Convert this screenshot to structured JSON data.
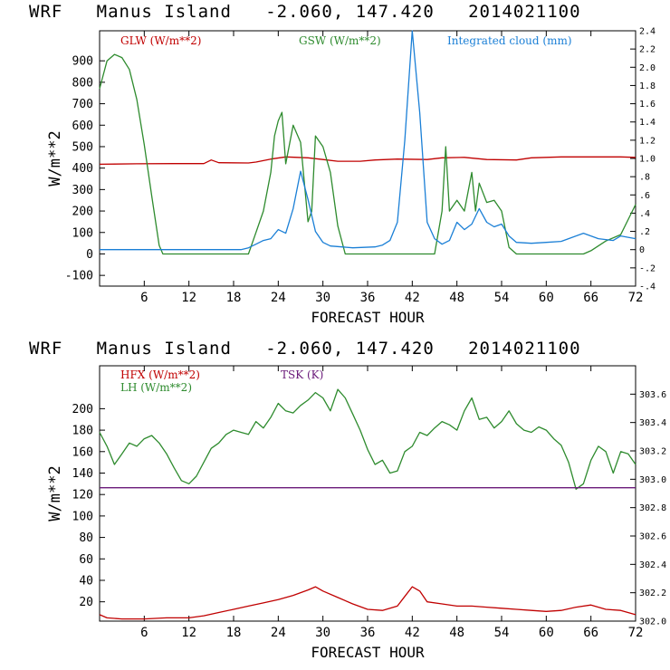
{
  "chart_data": [
    {
      "type": "line",
      "title": "WRF   Manus Island   -2.060, 147.420   2014021100",
      "xlabel": "FORECAST HOUR",
      "ylabel": "W/m**2",
      "xlim": [
        0,
        72
      ],
      "ylim": [
        -150,
        1040
      ],
      "xticks": [
        6,
        12,
        18,
        24,
        30,
        36,
        42,
        48,
        54,
        60,
        66,
        72
      ],
      "yticks": [
        -100,
        0,
        100,
        200,
        300,
        400,
        500,
        600,
        700,
        800,
        900
      ],
      "y2lim": [
        -0.4,
        2.4
      ],
      "y2ticks": [
        -0.4,
        -0.2,
        0,
        0.2,
        0.4,
        0.6,
        0.8,
        1.0,
        1.2,
        1.4,
        1.6,
        1.8,
        2.0,
        2.2,
        2.4
      ],
      "y2tick_labels": [
        "-.4",
        "-.2",
        "0",
        ".2",
        ".4",
        ".6",
        ".8",
        "1.0",
        "1.2",
        "1.4",
        "1.6",
        "1.8",
        "2.0",
        "2.2",
        "2.4"
      ],
      "grid": false,
      "series": [
        {
          "name": "GLW (W/m**2)",
          "color": "#c00000",
          "axis": "left",
          "points": [
            [
              0,
              418
            ],
            [
              5,
              420
            ],
            [
              10,
              421
            ],
            [
              14,
              421
            ],
            [
              15,
              438
            ],
            [
              16,
              425
            ],
            [
              20,
              424
            ],
            [
              21,
              428
            ],
            [
              22,
              435
            ],
            [
              23,
              442
            ],
            [
              25,
              452
            ],
            [
              28,
              448
            ],
            [
              30,
              440
            ],
            [
              32,
              432
            ],
            [
              35,
              432
            ],
            [
              37,
              438
            ],
            [
              40,
              442
            ],
            [
              44,
              440
            ],
            [
              46,
              448
            ],
            [
              49,
              450
            ],
            [
              52,
              440
            ],
            [
              56,
              438
            ],
            [
              58,
              448
            ],
            [
              62,
              452
            ],
            [
              66,
              452
            ],
            [
              70,
              452
            ],
            [
              72,
              450
            ]
          ]
        },
        {
          "name": "GSW (W/m**2)",
          "color": "#2e8b2e",
          "axis": "left",
          "points": [
            [
              0,
              770
            ],
            [
              1,
              900
            ],
            [
              2,
              930
            ],
            [
              3,
              915
            ],
            [
              4,
              860
            ],
            [
              5,
              720
            ],
            [
              6,
              510
            ],
            [
              7,
              270
            ],
            [
              8,
              40
            ],
            [
              8.5,
              0
            ],
            [
              20,
              0
            ],
            [
              21,
              100
            ],
            [
              22,
              200
            ],
            [
              23,
              380
            ],
            [
              23.5,
              550
            ],
            [
              24,
              620
            ],
            [
              24.5,
              660
            ],
            [
              25,
              420
            ],
            [
              26,
              600
            ],
            [
              27,
              520
            ],
            [
              28,
              150
            ],
            [
              28.5,
              200
            ],
            [
              29,
              550
            ],
            [
              30,
              500
            ],
            [
              31,
              380
            ],
            [
              32,
              130
            ],
            [
              33,
              0
            ],
            [
              45,
              0
            ],
            [
              46,
              200
            ],
            [
              46.5,
              500
            ],
            [
              47,
              200
            ],
            [
              48,
              250
            ],
            [
              49,
              200
            ],
            [
              50,
              380
            ],
            [
              50.5,
              200
            ],
            [
              51,
              330
            ],
            [
              52,
              240
            ],
            [
              53,
              250
            ],
            [
              54,
              200
            ],
            [
              55,
              30
            ],
            [
              56,
              0
            ],
            [
              65,
              0
            ],
            [
              66,
              15
            ],
            [
              68,
              60
            ],
            [
              70,
              90
            ],
            [
              71,
              160
            ],
            [
              72,
              230
            ]
          ]
        },
        {
          "name": "Integrated cloud (mm)",
          "color": "#1a7fd6",
          "axis": "right",
          "points": [
            [
              0,
              0
            ],
            [
              15,
              0
            ],
            [
              19,
              0
            ],
            [
              20,
              0.02
            ],
            [
              21,
              0.06
            ],
            [
              22,
              0.1
            ],
            [
              23,
              0.12
            ],
            [
              24,
              0.22
            ],
            [
              25,
              0.18
            ],
            [
              26,
              0.45
            ],
            [
              27,
              0.86
            ],
            [
              28,
              0.55
            ],
            [
              29,
              0.2
            ],
            [
              30,
              0.08
            ],
            [
              31,
              0.04
            ],
            [
              34,
              0.02
            ],
            [
              37,
              0.03
            ],
            [
              38,
              0.05
            ],
            [
              39,
              0.1
            ],
            [
              40,
              0.3
            ],
            [
              41,
              1.2
            ],
            [
              42,
              2.4
            ],
            [
              43,
              1.5
            ],
            [
              44,
              0.3
            ],
            [
              45,
              0.12
            ],
            [
              46,
              0.06
            ],
            [
              47,
              0.1
            ],
            [
              48,
              0.3
            ],
            [
              49,
              0.22
            ],
            [
              50,
              0.28
            ],
            [
              51,
              0.45
            ],
            [
              52,
              0.3
            ],
            [
              53,
              0.25
            ],
            [
              54,
              0.28
            ],
            [
              55,
              0.15
            ],
            [
              56,
              0.08
            ],
            [
              58,
              0.07
            ],
            [
              60,
              0.08
            ],
            [
              62,
              0.09
            ],
            [
              63,
              0.12
            ],
            [
              65,
              0.18
            ],
            [
              67,
              0.12
            ],
            [
              69,
              0.1
            ],
            [
              70,
              0.15
            ],
            [
              72,
              0.12
            ]
          ]
        }
      ]
    },
    {
      "type": "line",
      "title": "WRF   Manus Island   -2.060, 147.420   2014021100",
      "xlabel": "FORECAST HOUR",
      "ylabel": "W/m**2",
      "xlim": [
        0,
        72
      ],
      "ylim": [
        2,
        240
      ],
      "xticks": [
        6,
        12,
        18,
        24,
        30,
        36,
        42,
        48,
        54,
        60,
        66,
        72
      ],
      "yticks": [
        20,
        40,
        60,
        80,
        100,
        120,
        140,
        160,
        180,
        200
      ],
      "y2lim": [
        302.0,
        303.8
      ],
      "y2ticks": [
        302.0,
        302.2,
        302.4,
        302.6,
        302.8,
        303.0,
        303.2,
        303.4,
        303.6
      ],
      "y2tick_labels": [
        "302.0",
        "302.2",
        "302.4",
        "302.6",
        "302.8",
        "303.0",
        "303.2",
        "303.4",
        "303.6"
      ],
      "grid": false,
      "series": [
        {
          "name": "HFX (W/m**2)",
          "color": "#c00000",
          "axis": "left",
          "points": [
            [
              0,
              8
            ],
            [
              1,
              5
            ],
            [
              3,
              4
            ],
            [
              6,
              4
            ],
            [
              9,
              5
            ],
            [
              12,
              5
            ],
            [
              14,
              7
            ],
            [
              16,
              10
            ],
            [
              18,
              13
            ],
            [
              20,
              16
            ],
            [
              22,
              19
            ],
            [
              24,
              22
            ],
            [
              26,
              26
            ],
            [
              28,
              31
            ],
            [
              29,
              34
            ],
            [
              30,
              30
            ],
            [
              32,
              24
            ],
            [
              34,
              18
            ],
            [
              36,
              13
            ],
            [
              38,
              12
            ],
            [
              40,
              16
            ],
            [
              41,
              25
            ],
            [
              42,
              34
            ],
            [
              43,
              30
            ],
            [
              44,
              20
            ],
            [
              46,
              18
            ],
            [
              48,
              16
            ],
            [
              50,
              16
            ],
            [
              52,
              15
            ],
            [
              54,
              14
            ],
            [
              56,
              13
            ],
            [
              58,
              12
            ],
            [
              60,
              11
            ],
            [
              62,
              12
            ],
            [
              64,
              15
            ],
            [
              66,
              17
            ],
            [
              68,
              13
            ],
            [
              70,
              12
            ],
            [
              72,
              8
            ]
          ]
        },
        {
          "name": "LH (W/m**2)",
          "color": "#2e8b2e",
          "axis": "left",
          "points": [
            [
              0,
              178
            ],
            [
              1,
              165
            ],
            [
              2,
              148
            ],
            [
              3,
              158
            ],
            [
              4,
              168
            ],
            [
              5,
              165
            ],
            [
              6,
              172
            ],
            [
              7,
              175
            ],
            [
              8,
              168
            ],
            [
              9,
              158
            ],
            [
              10,
              145
            ],
            [
              11,
              133
            ],
            [
              12,
              130
            ],
            [
              13,
              137
            ],
            [
              14,
              150
            ],
            [
              15,
              163
            ],
            [
              16,
              168
            ],
            [
              17,
              176
            ],
            [
              18,
              180
            ],
            [
              19,
              178
            ],
            [
              20,
              176
            ],
            [
              21,
              188
            ],
            [
              22,
              182
            ],
            [
              23,
              192
            ],
            [
              24,
              205
            ],
            [
              25,
              198
            ],
            [
              26,
              196
            ],
            [
              27,
              203
            ],
            [
              28,
              208
            ],
            [
              29,
              215
            ],
            [
              30,
              210
            ],
            [
              31,
              198
            ],
            [
              32,
              218
            ],
            [
              33,
              210
            ],
            [
              34,
              195
            ],
            [
              35,
              180
            ],
            [
              36,
              162
            ],
            [
              37,
              148
            ],
            [
              38,
              152
            ],
            [
              39,
              140
            ],
            [
              40,
              142
            ],
            [
              41,
              160
            ],
            [
              42,
              165
            ],
            [
              43,
              178
            ],
            [
              44,
              175
            ],
            [
              45,
              182
            ],
            [
              46,
              188
            ],
            [
              47,
              185
            ],
            [
              48,
              180
            ],
            [
              49,
              198
            ],
            [
              50,
              210
            ],
            [
              51,
              190
            ],
            [
              52,
              192
            ],
            [
              53,
              182
            ],
            [
              54,
              188
            ],
            [
              55,
              198
            ],
            [
              56,
              186
            ],
            [
              57,
              180
            ],
            [
              58,
              178
            ],
            [
              59,
              183
            ],
            [
              60,
              180
            ],
            [
              61,
              172
            ],
            [
              62,
              166
            ],
            [
              63,
              150
            ],
            [
              64,
              125
            ],
            [
              65,
              130
            ],
            [
              66,
              152
            ],
            [
              67,
              165
            ],
            [
              68,
              160
            ],
            [
              69,
              140
            ],
            [
              70,
              160
            ],
            [
              71,
              158
            ],
            [
              72,
              148
            ]
          ]
        },
        {
          "name": "TSK (K)",
          "color": "#6a1a7a",
          "axis": "right",
          "points": [
            [
              0,
              302.94
            ],
            [
              72,
              302.94
            ]
          ]
        }
      ]
    }
  ]
}
